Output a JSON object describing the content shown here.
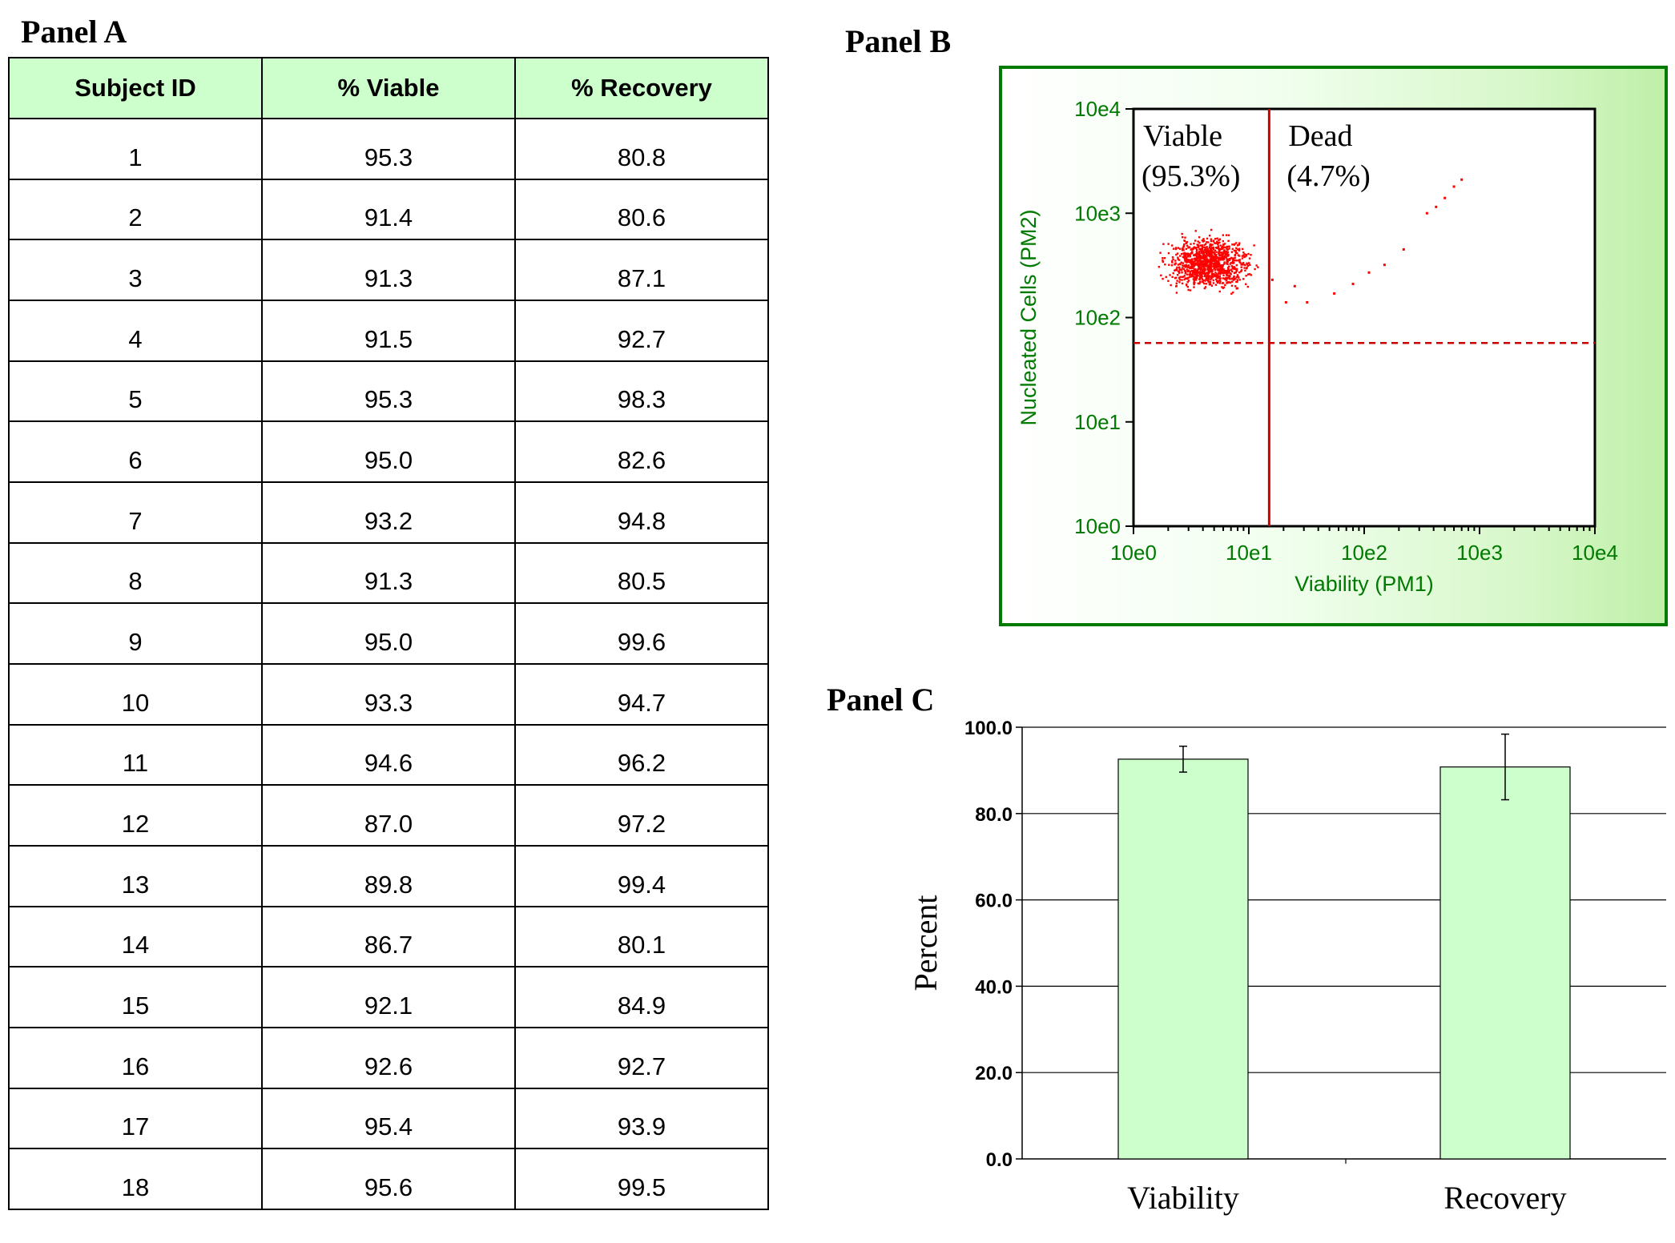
{
  "panel_a": {
    "title": "Panel A",
    "headers": [
      "Subject ID",
      "% Viable",
      "% Recovery"
    ],
    "rows": [
      [
        "1",
        "95.3",
        "80.8"
      ],
      [
        "2",
        "91.4",
        "80.6"
      ],
      [
        "3",
        "91.3",
        "87.1"
      ],
      [
        "4",
        "91.5",
        "92.7"
      ],
      [
        "5",
        "95.3",
        "98.3"
      ],
      [
        "6",
        "95.0",
        "82.6"
      ],
      [
        "7",
        "93.2",
        "94.8"
      ],
      [
        "8",
        "91.3",
        "80.5"
      ],
      [
        "9",
        "95.0",
        "99.6"
      ],
      [
        "10",
        "93.3",
        "94.7"
      ],
      [
        "11",
        "94.6",
        "96.2"
      ],
      [
        "12",
        "87.0",
        "97.2"
      ],
      [
        "13",
        "89.8",
        "99.4"
      ],
      [
        "14",
        "86.7",
        "80.1"
      ],
      [
        "15",
        "92.1",
        "84.9"
      ],
      [
        "16",
        "92.6",
        "92.7"
      ],
      [
        "17",
        "95.4",
        "93.9"
      ],
      [
        "18",
        "95.6",
        "99.5"
      ]
    ]
  },
  "panel_b": {
    "title": "Panel B",
    "quadrant_labels": [
      {
        "name": "Viable",
        "percent": "(95.3%)"
      },
      {
        "name": "Dead",
        "percent": "(4.7%)"
      }
    ]
  },
  "panel_c": {
    "title": "Panel C"
  },
  "chart_data": [
    {
      "type": "scatter",
      "xlabel": "Viability (PM1)",
      "ylabel": "Nucleated Cells (PM2)",
      "x_scale": "log",
      "y_scale": "log",
      "xlim": [
        1,
        10000
      ],
      "ylim": [
        1,
        10000
      ],
      "x_tick_labels": [
        "10e0",
        "10e1",
        "10e2",
        "10e3",
        "10e4"
      ],
      "y_tick_labels": [
        "10e0",
        "10e1",
        "10e2",
        "10e3",
        "10e4"
      ],
      "viability_gate_x": 15,
      "nucleated_threshold_y": 57,
      "populations": [
        {
          "label": "Viable",
          "percent": 95.3,
          "x_range": [
            1,
            12
          ],
          "y_range": [
            100,
            850
          ],
          "center": [
            4.5,
            330
          ]
        },
        {
          "label": "Dead",
          "percent": 4.7
        }
      ],
      "dead_points": [
        [
          16,
          230
        ],
        [
          21,
          140
        ],
        [
          25,
          200
        ],
        [
          32,
          140
        ],
        [
          55,
          170
        ],
        [
          80,
          210
        ],
        [
          110,
          270
        ],
        [
          150,
          320
        ],
        [
          220,
          450
        ],
        [
          350,
          1000
        ],
        [
          420,
          1150
        ],
        [
          500,
          1400
        ],
        [
          600,
          1800
        ],
        [
          700,
          2100
        ]
      ],
      "point_color": "#ff0000",
      "gate_color": "#cc0000",
      "axis_color": "#007a00"
    },
    {
      "type": "bar",
      "categories": [
        "Viability",
        "Recovery"
      ],
      "values": [
        92.6,
        90.8
      ],
      "error": [
        3.0,
        7.6
      ],
      "ylabel": "Percent",
      "ylim": [
        0,
        100
      ],
      "y_ticks": [
        "0.0",
        "20.0",
        "40.0",
        "60.0",
        "80.0",
        "100.0"
      ],
      "bar_color": "#ccffcc",
      "grid": true
    }
  ]
}
